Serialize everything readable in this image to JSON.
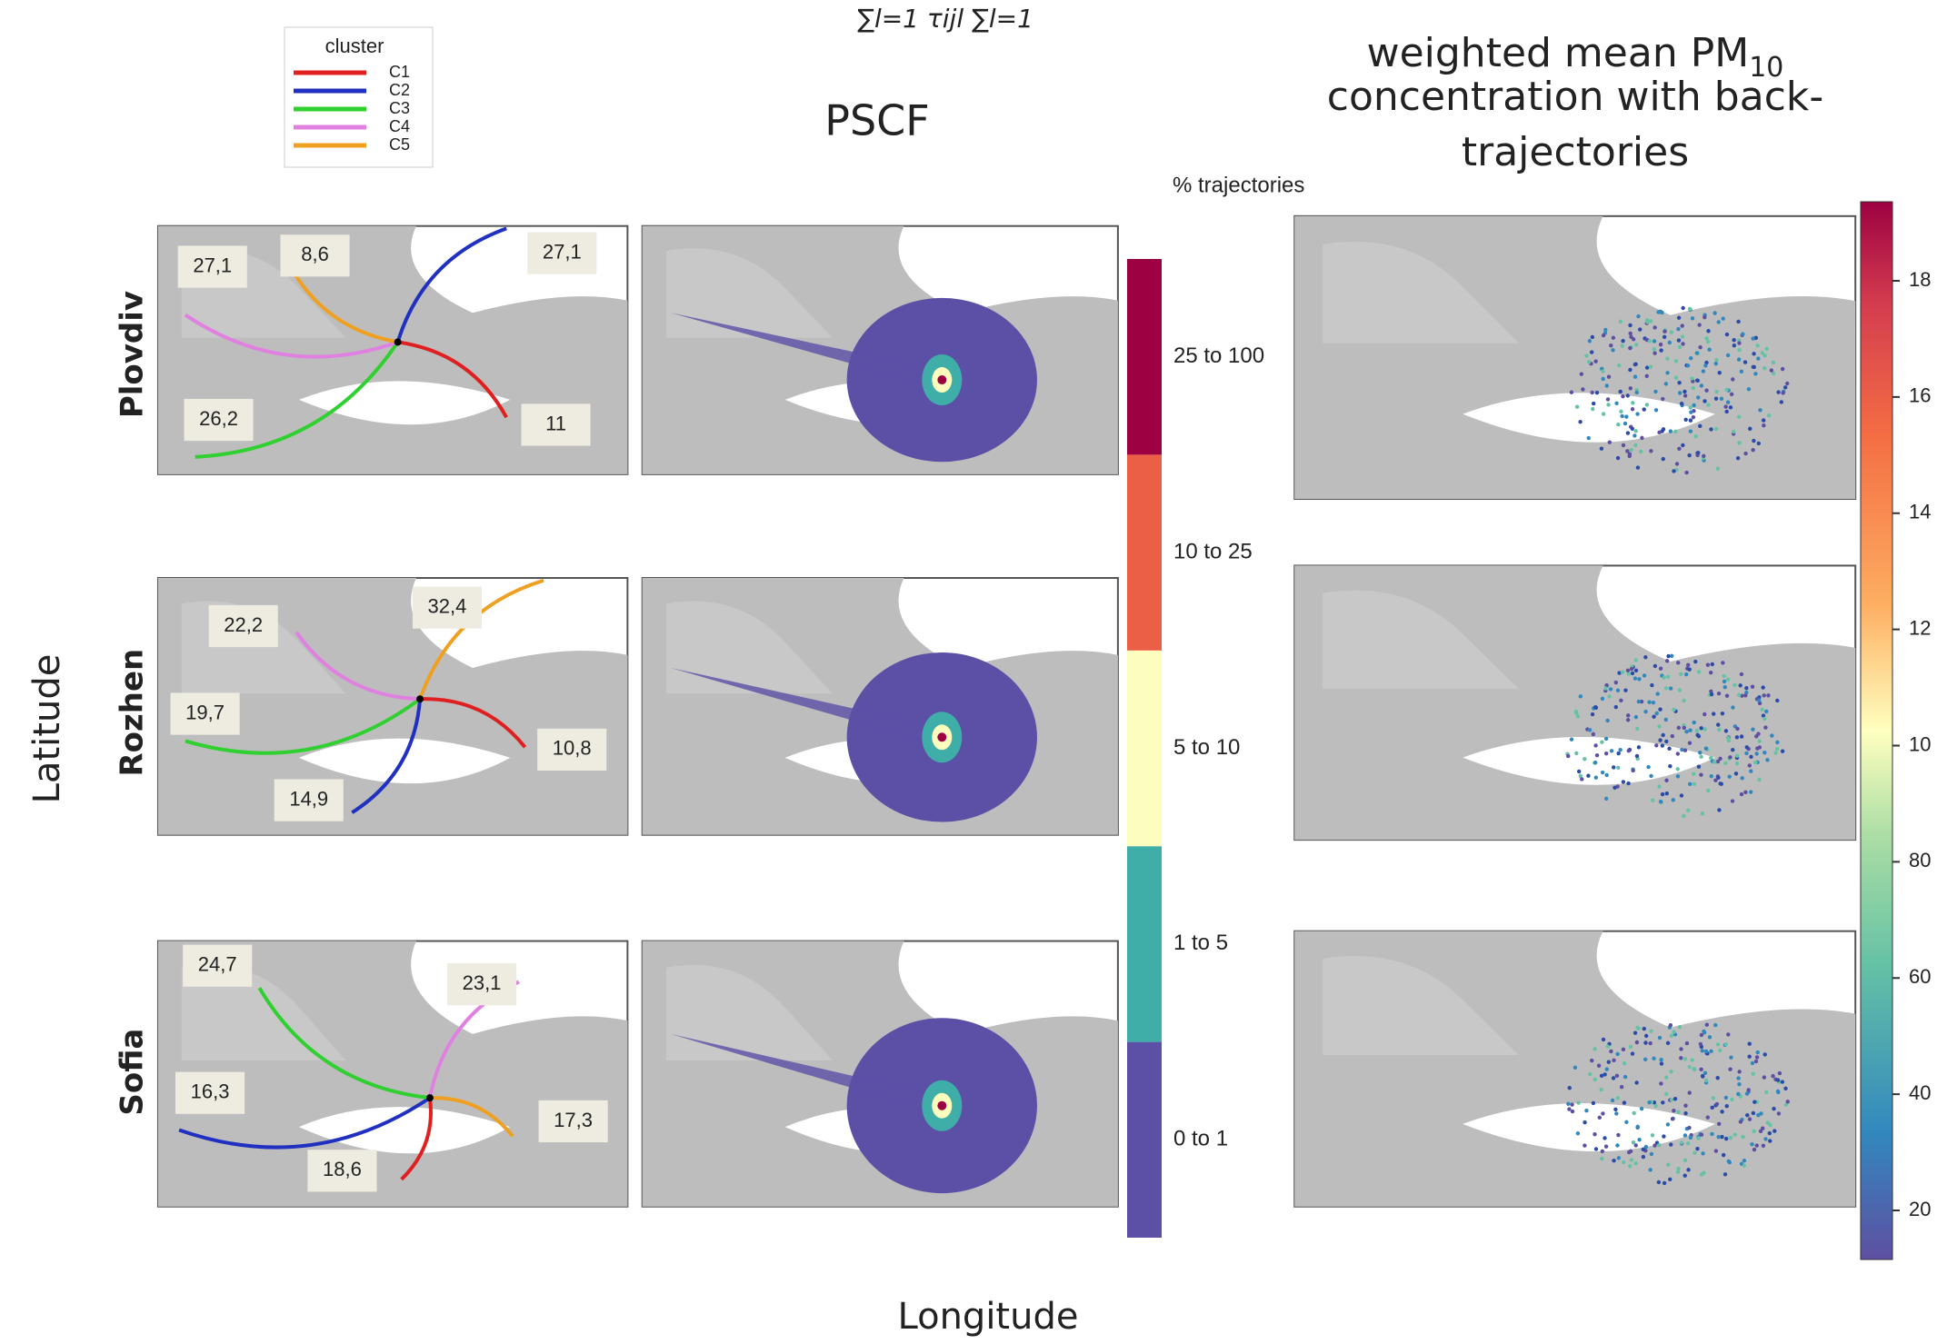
{
  "formula": "∑l=1 τijl ∑l=1",
  "legend": {
    "title": "cluster",
    "items": [
      {
        "name": "C1",
        "color": "#e02020"
      },
      {
        "name": "C2",
        "color": "#2030c0"
      },
      {
        "name": "C3",
        "color": "#30d030"
      },
      {
        "name": "C4",
        "color": "#e080e0"
      },
      {
        "name": "C5",
        "color": "#f0a020"
      }
    ]
  },
  "pscf_title": "PSCF",
  "pm_title": {
    "line1": "weighted mean PM",
    "sub": "10",
    "line2": "concentration with back-",
    "line3": "trajectories"
  },
  "pscf_colorbar": {
    "title": "% trajectories",
    "classes": [
      {
        "label": "0 to 1",
        "color": "#5b4fa6"
      },
      {
        "label": "1 to 5",
        "color": "#3fada8"
      },
      {
        "label": "5 to 10",
        "color": "#fdfdbd"
      },
      {
        "label": "10 to 25",
        "color": "#ec5f47"
      },
      {
        "label": "25 to 100",
        "color": "#9e0142"
      }
    ]
  },
  "pm_colorbar": {
    "ticks": [
      "18",
      "16",
      "14",
      "12",
      "10",
      "80",
      "60",
      "40",
      "20"
    ]
  },
  "y_label": "Latitude",
  "x_label": "Longitude",
  "rows": [
    {
      "name": "Plovdiv",
      "cluster_labels": [
        "27,1",
        "8,6",
        "27,1",
        "26,2",
        "11"
      ]
    },
    {
      "name": "Rozhen",
      "cluster_labels": [
        "22,2",
        "32,4",
        "19,7",
        "10,8",
        "14,9"
      ]
    },
    {
      "name": "Sofia",
      "cluster_labels": [
        "24,7",
        "23,1",
        "16,3",
        "17,3",
        "18,6"
      ]
    }
  ]
}
